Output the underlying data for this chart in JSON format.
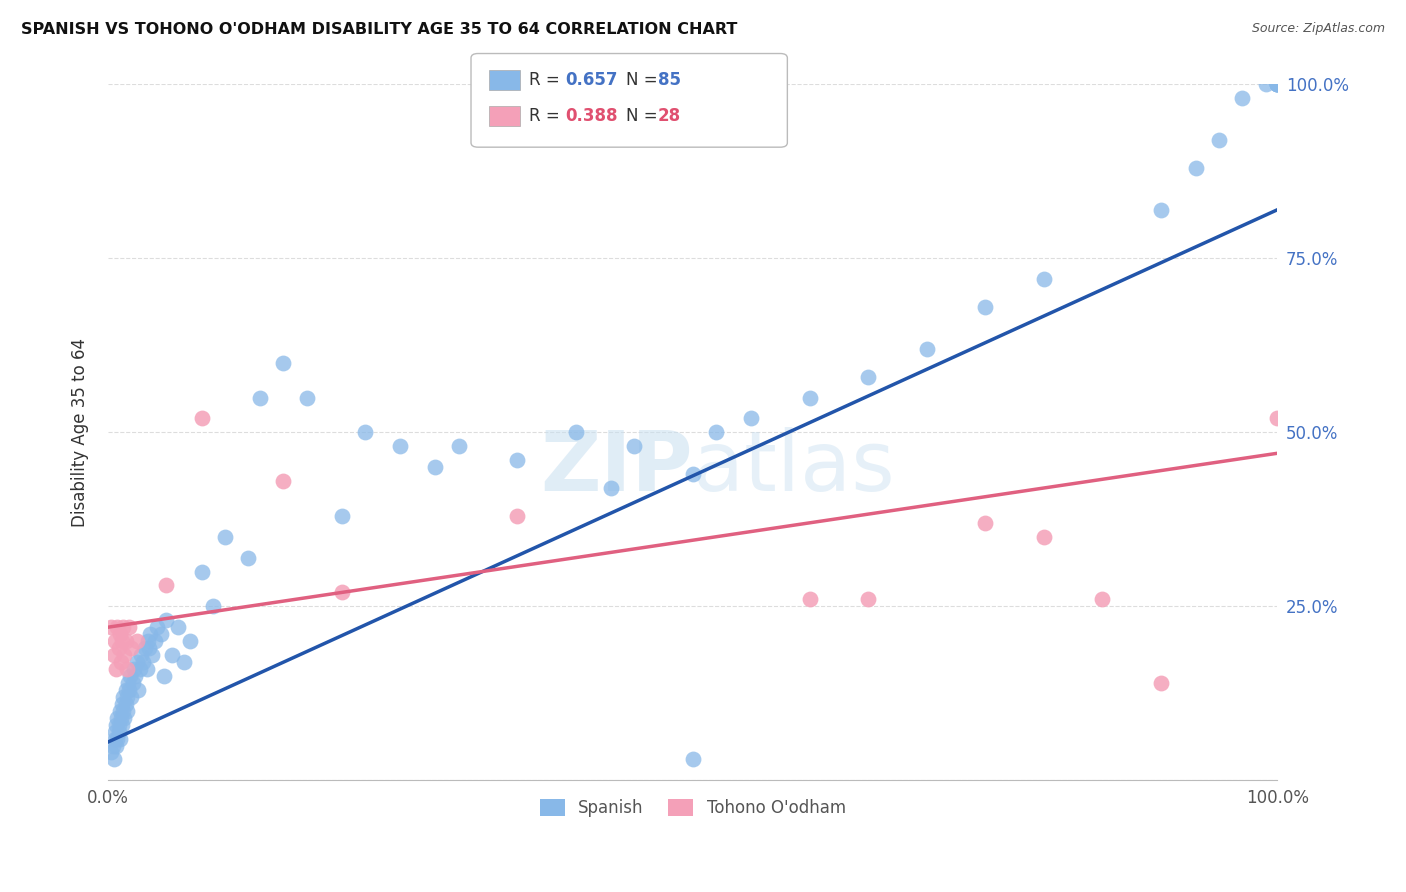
{
  "title": "SPANISH VS TOHONO O'ODHAM DISABILITY AGE 35 TO 64 CORRELATION CHART",
  "source": "Source: ZipAtlas.com",
  "ylabel": "Disability Age 35 to 64",
  "xlim": [
    0,
    1.0
  ],
  "ylim": [
    0,
    1.0
  ],
  "spanish_color": "#88B8E8",
  "tohono_color": "#F4A0B8",
  "spanish_line_color": "#2255AA",
  "tohono_line_color": "#E06080",
  "background_color": "#ffffff",
  "grid_color": "#dddddd",
  "spanish_line_y0": 0.055,
  "spanish_line_y1": 0.82,
  "tohono_line_y0": 0.22,
  "tohono_line_y1": 0.47,
  "spanish_x": [
    0.003,
    0.004,
    0.005,
    0.006,
    0.006,
    0.007,
    0.007,
    0.008,
    0.008,
    0.009,
    0.009,
    0.01,
    0.01,
    0.011,
    0.012,
    0.012,
    0.013,
    0.013,
    0.014,
    0.015,
    0.015,
    0.016,
    0.016,
    0.017,
    0.018,
    0.019,
    0.02,
    0.021,
    0.022,
    0.023,
    0.025,
    0.026,
    0.027,
    0.028,
    0.03,
    0.032,
    0.033,
    0.034,
    0.035,
    0.036,
    0.038,
    0.04,
    0.042,
    0.045,
    0.048,
    0.05,
    0.055,
    0.06,
    0.065,
    0.07,
    0.08,
    0.09,
    0.1,
    0.12,
    0.13,
    0.15,
    0.17,
    0.2,
    0.22,
    0.25,
    0.28,
    0.3,
    0.35,
    0.4,
    0.43,
    0.45,
    0.5,
    0.52,
    0.55,
    0.6,
    0.65,
    0.7,
    0.75,
    0.8,
    0.9,
    0.93,
    0.95,
    0.97,
    0.99,
    1.0,
    1.0,
    1.0,
    1.0,
    1.0,
    0.5
  ],
  "spanish_y": [
    0.04,
    0.05,
    0.03,
    0.06,
    0.07,
    0.05,
    0.08,
    0.06,
    0.09,
    0.07,
    0.08,
    0.06,
    0.1,
    0.09,
    0.08,
    0.11,
    0.1,
    0.12,
    0.09,
    0.11,
    0.13,
    0.1,
    0.12,
    0.14,
    0.13,
    0.15,
    0.12,
    0.14,
    0.16,
    0.15,
    0.17,
    0.13,
    0.16,
    0.18,
    0.17,
    0.19,
    0.16,
    0.2,
    0.19,
    0.21,
    0.18,
    0.2,
    0.22,
    0.21,
    0.15,
    0.23,
    0.18,
    0.22,
    0.17,
    0.2,
    0.3,
    0.25,
    0.35,
    0.32,
    0.55,
    0.6,
    0.55,
    0.38,
    0.5,
    0.48,
    0.45,
    0.48,
    0.46,
    0.5,
    0.42,
    0.48,
    0.44,
    0.5,
    0.52,
    0.55,
    0.58,
    0.62,
    0.68,
    0.72,
    0.82,
    0.88,
    0.92,
    0.98,
    1.0,
    1.0,
    1.0,
    1.0,
    1.0,
    1.0,
    0.03
  ],
  "tohono_x": [
    0.003,
    0.005,
    0.006,
    0.007,
    0.008,
    0.009,
    0.01,
    0.011,
    0.012,
    0.013,
    0.014,
    0.015,
    0.016,
    0.018,
    0.02,
    0.025,
    0.05,
    0.08,
    0.15,
    0.2,
    0.35,
    0.6,
    0.65,
    0.75,
    0.8,
    0.85,
    0.9,
    1.0
  ],
  "tohono_y": [
    0.22,
    0.18,
    0.2,
    0.16,
    0.22,
    0.19,
    0.21,
    0.17,
    0.2,
    0.22,
    0.18,
    0.2,
    0.16,
    0.22,
    0.19,
    0.2,
    0.28,
    0.52,
    0.43,
    0.27,
    0.38,
    0.26,
    0.26,
    0.37,
    0.35,
    0.26,
    0.14,
    0.52
  ]
}
